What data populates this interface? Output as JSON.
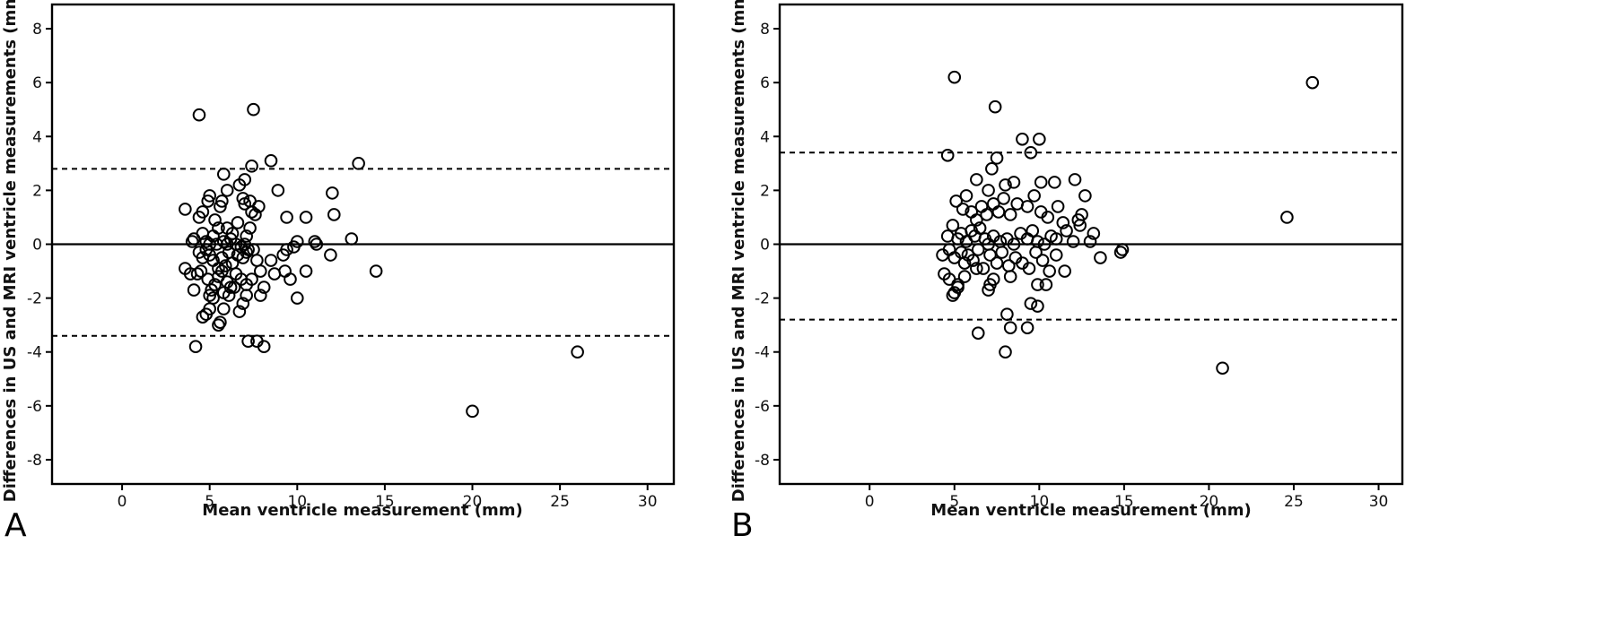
{
  "chart_data": [
    {
      "type": "scatter",
      "panel_label": "A",
      "xlabel": "Mean ventricle measurement (mm)",
      "ylabel": "Differences in US and MRI ventricle measurements (mm)",
      "xlim": [
        -4,
        31.5
      ],
      "ylim": [
        -8.9,
        8.9
      ],
      "xticks": [
        0,
        5,
        10,
        15,
        20,
        25,
        30
      ],
      "yticks": [
        -8,
        -6,
        -4,
        -2,
        0,
        2,
        4,
        6,
        8
      ],
      "reference_lines": {
        "mean": 0,
        "upper_loa": 2.8,
        "lower_loa": -3.4
      },
      "points": [
        [
          4.4,
          4.8
        ],
        [
          7.5,
          5.0
        ],
        [
          7.4,
          2.9
        ],
        [
          8.5,
          3.1
        ],
        [
          13.5,
          3.0
        ],
        [
          5.8,
          2.6
        ],
        [
          7.0,
          2.4
        ],
        [
          3.6,
          1.3
        ],
        [
          4.4,
          1.0
        ],
        [
          4.6,
          1.2
        ],
        [
          4.9,
          1.6
        ],
        [
          5.0,
          1.8
        ],
        [
          5.6,
          1.4
        ],
        [
          5.7,
          1.6
        ],
        [
          6.0,
          2.0
        ],
        [
          6.7,
          2.2
        ],
        [
          6.9,
          1.7
        ],
        [
          7.0,
          1.5
        ],
        [
          7.3,
          1.6
        ],
        [
          7.4,
          1.2
        ],
        [
          7.6,
          1.1
        ],
        [
          7.8,
          1.4
        ],
        [
          8.9,
          2.0
        ],
        [
          9.4,
          1.0
        ],
        [
          10.5,
          1.0
        ],
        [
          12.0,
          1.9
        ],
        [
          12.1,
          1.1
        ],
        [
          5.3,
          0.9
        ],
        [
          5.5,
          0.6
        ],
        [
          6.0,
          0.6
        ],
        [
          6.3,
          0.4
        ],
        [
          6.6,
          0.8
        ],
        [
          7.1,
          0.3
        ],
        [
          7.3,
          0.6
        ],
        [
          4.0,
          0.1
        ],
        [
          4.1,
          0.2
        ],
        [
          4.6,
          0.4
        ],
        [
          4.8,
          0.1
        ],
        [
          5.0,
          0.0
        ],
        [
          5.2,
          0.3
        ],
        [
          5.4,
          0.0
        ],
        [
          5.8,
          0.1
        ],
        [
          6.0,
          0.0
        ],
        [
          6.2,
          0.2
        ],
        [
          6.5,
          0.0
        ],
        [
          6.8,
          -0.1
        ],
        [
          7.0,
          0.0
        ],
        [
          7.2,
          -0.2
        ],
        [
          7.5,
          -0.2
        ],
        [
          9.4,
          -0.2
        ],
        [
          9.8,
          -0.1
        ],
        [
          10.0,
          0.1
        ],
        [
          11.0,
          0.1
        ],
        [
          11.1,
          0.0
        ],
        [
          13.1,
          0.2
        ],
        [
          4.4,
          -0.3
        ],
        [
          4.6,
          -0.5
        ],
        [
          4.8,
          -0.2
        ],
        [
          5.0,
          -0.4
        ],
        [
          5.2,
          -0.6
        ],
        [
          5.5,
          -0.9
        ],
        [
          5.7,
          -0.5
        ],
        [
          5.9,
          -0.8
        ],
        [
          6.1,
          -0.3
        ],
        [
          6.3,
          -0.7
        ],
        [
          6.6,
          -0.4
        ],
        [
          6.9,
          -0.5
        ],
        [
          7.1,
          -0.3
        ],
        [
          7.7,
          -0.6
        ],
        [
          8.5,
          -0.6
        ],
        [
          9.2,
          -0.4
        ],
        [
          11.9,
          -0.4
        ],
        [
          3.6,
          -0.9
        ],
        [
          3.9,
          -1.1
        ],
        [
          4.3,
          -1.1
        ],
        [
          4.5,
          -1.0
        ],
        [
          4.9,
          -1.3
        ],
        [
          5.1,
          -1.7
        ],
        [
          5.3,
          -1.5
        ],
        [
          5.5,
          -1.2
        ],
        [
          5.7,
          -1.0
        ],
        [
          6.0,
          -1.4
        ],
        [
          6.2,
          -1.6
        ],
        [
          6.5,
          -1.1
        ],
        [
          6.8,
          -1.3
        ],
        [
          7.1,
          -1.5
        ],
        [
          7.4,
          -1.3
        ],
        [
          7.9,
          -1.0
        ],
        [
          8.1,
          -1.6
        ],
        [
          8.7,
          -1.1
        ],
        [
          9.3,
          -1.0
        ],
        [
          9.6,
          -1.3
        ],
        [
          10.5,
          -1.0
        ],
        [
          14.5,
          -1.0
        ],
        [
          4.1,
          -1.7
        ],
        [
          5.0,
          -1.9
        ],
        [
          5.2,
          -2.0
        ],
        [
          5.8,
          -1.8
        ],
        [
          6.1,
          -1.9
        ],
        [
          6.4,
          -1.6
        ],
        [
          6.7,
          -2.5
        ],
        [
          6.9,
          -2.2
        ],
        [
          7.1,
          -1.9
        ],
        [
          7.9,
          -1.9
        ],
        [
          10.0,
          -2.0
        ],
        [
          4.6,
          -2.7
        ],
        [
          4.8,
          -2.6
        ],
        [
          5.0,
          -2.4
        ],
        [
          5.6,
          -2.9
        ],
        [
          5.8,
          -2.4
        ],
        [
          5.5,
          -3.0
        ],
        [
          4.2,
          -3.8
        ],
        [
          7.2,
          -3.6
        ],
        [
          7.7,
          -3.6
        ],
        [
          8.1,
          -3.8
        ],
        [
          20.0,
          -6.2
        ],
        [
          26.0,
          -4.0
        ]
      ]
    },
    {
      "type": "scatter",
      "panel_label": "B",
      "xlabel": "Mean ventricle measurement (mm)",
      "ylabel": "Differences in US and MRI ventricle measurements (mm)",
      "xlim": [
        -5.3,
        31.4
      ],
      "ylim": [
        -8.9,
        8.9
      ],
      "xticks": [
        0,
        5,
        10,
        15,
        20,
        25,
        30
      ],
      "yticks": [
        -8,
        -6,
        -4,
        -2,
        0,
        2,
        4,
        6,
        8
      ],
      "reference_lines": {
        "mean": 0,
        "upper_loa": 3.4,
        "lower_loa": -2.8
      },
      "points": [
        [
          5.0,
          6.2
        ],
        [
          26.1,
          6.0
        ],
        [
          7.4,
          5.1
        ],
        [
          9.0,
          3.9
        ],
        [
          10.0,
          3.9
        ],
        [
          9.5,
          3.4
        ],
        [
          4.6,
          3.3
        ],
        [
          7.5,
          3.2
        ],
        [
          7.2,
          2.8
        ],
        [
          6.3,
          2.4
        ],
        [
          7.0,
          2.0
        ],
        [
          8.0,
          2.2
        ],
        [
          8.5,
          2.3
        ],
        [
          10.1,
          2.3
        ],
        [
          10.9,
          2.3
        ],
        [
          12.1,
          2.4
        ],
        [
          12.7,
          1.8
        ],
        [
          24.6,
          1.0
        ],
        [
          5.1,
          1.6
        ],
        [
          5.5,
          1.3
        ],
        [
          5.7,
          1.8
        ],
        [
          6.0,
          1.2
        ],
        [
          6.3,
          0.9
        ],
        [
          6.6,
          1.4
        ],
        [
          6.9,
          1.1
        ],
        [
          7.3,
          1.5
        ],
        [
          7.6,
          1.2
        ],
        [
          7.9,
          1.7
        ],
        [
          8.3,
          1.1
        ],
        [
          8.7,
          1.5
        ],
        [
          9.3,
          1.4
        ],
        [
          9.7,
          1.8
        ],
        [
          10.1,
          1.2
        ],
        [
          10.5,
          1.0
        ],
        [
          11.1,
          1.4
        ],
        [
          11.4,
          0.8
        ],
        [
          12.3,
          0.9
        ],
        [
          12.5,
          1.1
        ],
        [
          4.6,
          0.3
        ],
        [
          4.9,
          0.7
        ],
        [
          5.2,
          0.2
        ],
        [
          5.4,
          0.4
        ],
        [
          5.7,
          0.1
        ],
        [
          6.0,
          0.5
        ],
        [
          6.2,
          0.3
        ],
        [
          6.5,
          0.6
        ],
        [
          6.8,
          0.2
        ],
        [
          7.0,
          0.0
        ],
        [
          7.3,
          0.3
        ],
        [
          7.7,
          0.1
        ],
        [
          8.1,
          0.2
        ],
        [
          8.5,
          0.0
        ],
        [
          8.9,
          0.4
        ],
        [
          9.3,
          0.2
        ],
        [
          9.6,
          0.5
        ],
        [
          9.9,
          0.1
        ],
        [
          10.3,
          0.0
        ],
        [
          10.7,
          0.3
        ],
        [
          11.0,
          0.2
        ],
        [
          11.6,
          0.5
        ],
        [
          12.0,
          0.1
        ],
        [
          12.4,
          0.7
        ],
        [
          13.0,
          0.1
        ],
        [
          13.2,
          0.4
        ],
        [
          4.3,
          -0.4
        ],
        [
          4.7,
          -0.2
        ],
        [
          5.0,
          -0.5
        ],
        [
          5.4,
          -0.3
        ],
        [
          5.6,
          -0.7
        ],
        [
          5.8,
          -0.4
        ],
        [
          6.1,
          -0.6
        ],
        [
          6.4,
          -0.2
        ],
        [
          6.7,
          -0.9
        ],
        [
          7.1,
          -0.4
        ],
        [
          7.5,
          -0.7
        ],
        [
          7.8,
          -0.3
        ],
        [
          8.2,
          -0.8
        ],
        [
          8.6,
          -0.5
        ],
        [
          9.0,
          -0.7
        ],
        [
          9.4,
          -0.9
        ],
        [
          9.8,
          -0.3
        ],
        [
          10.2,
          -0.6
        ],
        [
          10.6,
          -1.0
        ],
        [
          11.0,
          -0.4
        ],
        [
          11.5,
          -1.0
        ],
        [
          13.6,
          -0.5
        ],
        [
          14.8,
          -0.3
        ],
        [
          14.9,
          -0.2
        ],
        [
          4.4,
          -1.1
        ],
        [
          4.7,
          -1.3
        ],
        [
          5.0,
          -1.8
        ],
        [
          5.2,
          -1.5
        ],
        [
          5.6,
          -1.2
        ],
        [
          6.3,
          -0.9
        ],
        [
          7.1,
          -1.5
        ],
        [
          7.3,
          -1.3
        ],
        [
          8.3,
          -1.2
        ],
        [
          9.9,
          -1.5
        ],
        [
          10.4,
          -1.5
        ],
        [
          4.9,
          -1.9
        ],
        [
          5.2,
          -1.6
        ],
        [
          7.0,
          -1.7
        ],
        [
          9.5,
          -2.2
        ],
        [
          9.9,
          -2.3
        ],
        [
          8.1,
          -2.6
        ],
        [
          8.3,
          -3.1
        ],
        [
          9.3,
          -3.1
        ],
        [
          6.4,
          -3.3
        ],
        [
          8.0,
          -4.0
        ],
        [
          20.8,
          -4.6
        ]
      ]
    }
  ]
}
